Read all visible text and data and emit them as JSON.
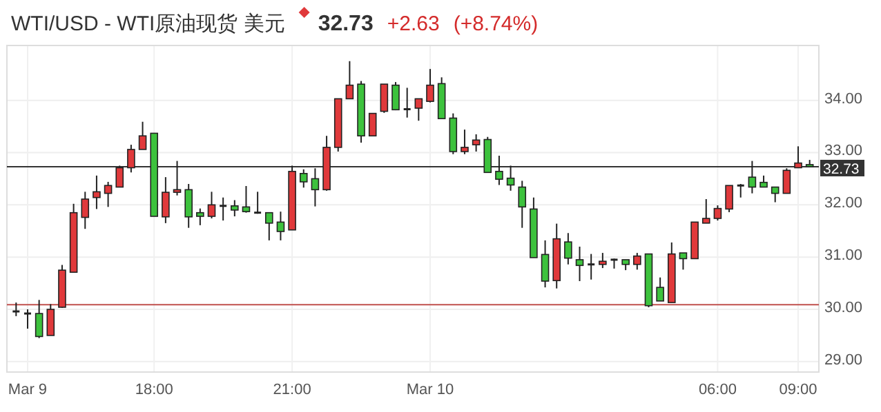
{
  "chart_data": {
    "type": "candlestick",
    "title": "WTI/USD - WTI原油现货 美元",
    "annotations": [
      "32.73",
      "+2.63",
      "(+8.74%)"
    ],
    "categories": [
      null,
      "Mar 9",
      null,
      null,
      null,
      null,
      null,
      null,
      null,
      null,
      null,
      null,
      "18:00",
      null,
      null,
      null,
      null,
      null,
      null,
      null,
      null,
      null,
      null,
      null,
      "21:00",
      null,
      null,
      null,
      null,
      null,
      null,
      null,
      null,
      null,
      null,
      null,
      "Mar 10",
      null,
      null,
      null,
      null,
      null,
      null,
      null,
      null,
      null,
      null,
      null,
      null,
      null,
      null,
      null,
      null,
      null,
      null,
      null,
      null,
      null,
      null,
      null,
      null,
      "06:00",
      null,
      null,
      null,
      null,
      null,
      null,
      "09:00",
      null
    ],
    "ohlc": [
      [
        29.96,
        30.13,
        29.87,
        29.96
      ],
      [
        29.92,
        30.0,
        29.63,
        29.92
      ],
      [
        29.92,
        30.18,
        29.45,
        29.48
      ],
      [
        29.5,
        30.1,
        29.5,
        30.0
      ],
      [
        30.04,
        30.85,
        30.03,
        30.75
      ],
      [
        30.71,
        32.02,
        30.71,
        31.85
      ],
      [
        31.76,
        32.25,
        31.54,
        32.11
      ],
      [
        32.14,
        32.56,
        31.92,
        32.25
      ],
      [
        32.22,
        32.44,
        31.96,
        32.37
      ],
      [
        32.34,
        32.75,
        32.34,
        32.71
      ],
      [
        32.71,
        33.15,
        32.62,
        33.06
      ],
      [
        33.06,
        33.59,
        33.06,
        33.32
      ],
      [
        33.37,
        33.37,
        31.78,
        31.78
      ],
      [
        31.77,
        32.53,
        31.65,
        32.24
      ],
      [
        32.24,
        32.84,
        32.18,
        32.29
      ],
      [
        32.29,
        32.4,
        31.56,
        31.77
      ],
      [
        31.85,
        31.93,
        31.61,
        31.78
      ],
      [
        31.78,
        32.25,
        31.74,
        32.0
      ],
      [
        31.98,
        32.14,
        31.7,
        31.98
      ],
      [
        31.98,
        32.09,
        31.78,
        31.9
      ],
      [
        31.96,
        32.36,
        31.85,
        31.87
      ],
      [
        31.85,
        32.25,
        31.83,
        31.85
      ],
      [
        31.85,
        31.85,
        31.32,
        31.65
      ],
      [
        31.67,
        31.87,
        31.32,
        31.49
      ],
      [
        31.52,
        32.75,
        31.52,
        32.64
      ],
      [
        32.6,
        32.68,
        32.33,
        32.44
      ],
      [
        32.5,
        32.7,
        31.97,
        32.29
      ],
      [
        32.29,
        33.32,
        32.27,
        33.1
      ],
      [
        33.1,
        34.03,
        33.02,
        34.03
      ],
      [
        34.03,
        34.75,
        34.03,
        34.29
      ],
      [
        34.31,
        34.37,
        33.19,
        33.32
      ],
      [
        33.32,
        33.75,
        33.32,
        33.75
      ],
      [
        33.79,
        34.31,
        33.76,
        34.31
      ],
      [
        34.29,
        34.35,
        33.81,
        33.82
      ],
      [
        33.83,
        34.24,
        33.67,
        33.83
      ],
      [
        33.85,
        34.03,
        33.61,
        34.03
      ],
      [
        33.98,
        34.6,
        33.96,
        34.29
      ],
      [
        34.32,
        34.44,
        33.65,
        33.65
      ],
      [
        33.66,
        33.75,
        32.97,
        33.02
      ],
      [
        33.02,
        33.44,
        32.97,
        33.1
      ],
      [
        33.15,
        33.35,
        33.02,
        33.24
      ],
      [
        33.25,
        33.3,
        32.62,
        32.62
      ],
      [
        32.64,
        32.94,
        32.38,
        32.49
      ],
      [
        32.51,
        32.75,
        32.27,
        32.38
      ],
      [
        32.34,
        32.46,
        31.56,
        31.96
      ],
      [
        31.92,
        32.14,
        30.99,
        30.99
      ],
      [
        31.05,
        31.32,
        30.42,
        30.54
      ],
      [
        30.55,
        31.64,
        30.4,
        31.35
      ],
      [
        31.29,
        31.46,
        30.86,
        30.98
      ],
      [
        30.95,
        31.2,
        30.54,
        30.84
      ],
      [
        30.86,
        31.06,
        30.57,
        30.86
      ],
      [
        30.86,
        31.08,
        30.79,
        30.92
      ],
      [
        30.95,
        30.97,
        30.78,
        30.95
      ],
      [
        30.95,
        30.95,
        30.75,
        30.86
      ],
      [
        30.86,
        31.08,
        30.76,
        31.02
      ],
      [
        31.06,
        31.06,
        30.04,
        30.07
      ],
      [
        30.42,
        30.61,
        30.16,
        30.16
      ],
      [
        30.13,
        31.28,
        30.13,
        31.06
      ],
      [
        31.08,
        31.08,
        30.76,
        30.97
      ],
      [
        30.97,
        31.67,
        30.97,
        31.67
      ],
      [
        31.65,
        32.11,
        31.65,
        31.74
      ],
      [
        31.74,
        31.99,
        31.7,
        31.93
      ],
      [
        31.92,
        32.37,
        31.86,
        32.37
      ],
      [
        32.37,
        32.4,
        32.14,
        32.37
      ],
      [
        32.53,
        32.84,
        32.22,
        32.34
      ],
      [
        32.43,
        32.56,
        32.34,
        32.34
      ],
      [
        32.34,
        32.34,
        32.05,
        32.22
      ],
      [
        32.22,
        32.7,
        32.22,
        32.66
      ],
      [
        32.71,
        33.12,
        32.71,
        32.8
      ],
      [
        32.77,
        32.86,
        32.73,
        32.73
      ]
    ],
    "colors": [
      "#222222",
      "#222222",
      "#3dc23d",
      "#e0393b",
      "#e0393b",
      "#e0393b",
      "#e0393b",
      "#e0393b",
      "#e0393b",
      "#e0393b",
      "#e0393b",
      "#e0393b",
      "#3dc23d",
      "#e0393b",
      "#e0393b",
      "#3dc23d",
      "#3dc23d",
      "#e0393b",
      "#222222",
      "#3dc23d",
      "#3dc23d",
      "#222222",
      "#3dc23d",
      "#3dc23d",
      "#e0393b",
      "#3dc23d",
      "#3dc23d",
      "#e0393b",
      "#e0393b",
      "#e0393b",
      "#3dc23d",
      "#e0393b",
      "#e0393b",
      "#3dc23d",
      "#222222",
      "#e0393b",
      "#e0393b",
      "#3dc23d",
      "#3dc23d",
      "#e0393b",
      "#e0393b",
      "#3dc23d",
      "#3dc23d",
      "#3dc23d",
      "#3dc23d",
      "#3dc23d",
      "#3dc23d",
      "#e0393b",
      "#3dc23d",
      "#3dc23d",
      "#222222",
      "#e0393b",
      "#222222",
      "#3dc23d",
      "#e0393b",
      "#3dc23d",
      "#3dc23d",
      "#e0393b",
      "#3dc23d",
      "#e0393b",
      "#e0393b",
      "#e0393b",
      "#e0393b",
      "#222222",
      "#3dc23d",
      "#3dc23d",
      "#3dc23d",
      "#e0393b",
      "#e0393b",
      "#3dc23d"
    ],
    "ylim": [
      28.8,
      35.05
    ],
    "yticks": [
      {
        "value": 29,
        "label": "29.00"
      },
      {
        "value": 30,
        "label": "30.00"
      },
      {
        "value": 31,
        "label": "31.00"
      },
      {
        "value": 32,
        "label": "32.00"
      },
      {
        "value": 33,
        "label": "33.00"
      },
      {
        "value": 34,
        "label": "34.00"
      }
    ],
    "ref_lines": [
      {
        "axis": "y",
        "value": 32.73,
        "label": "32.73",
        "color": "#333333"
      },
      {
        "axis": "y",
        "value": 30.09,
        "color": "#c0504d"
      }
    ],
    "grid": true
  }
}
